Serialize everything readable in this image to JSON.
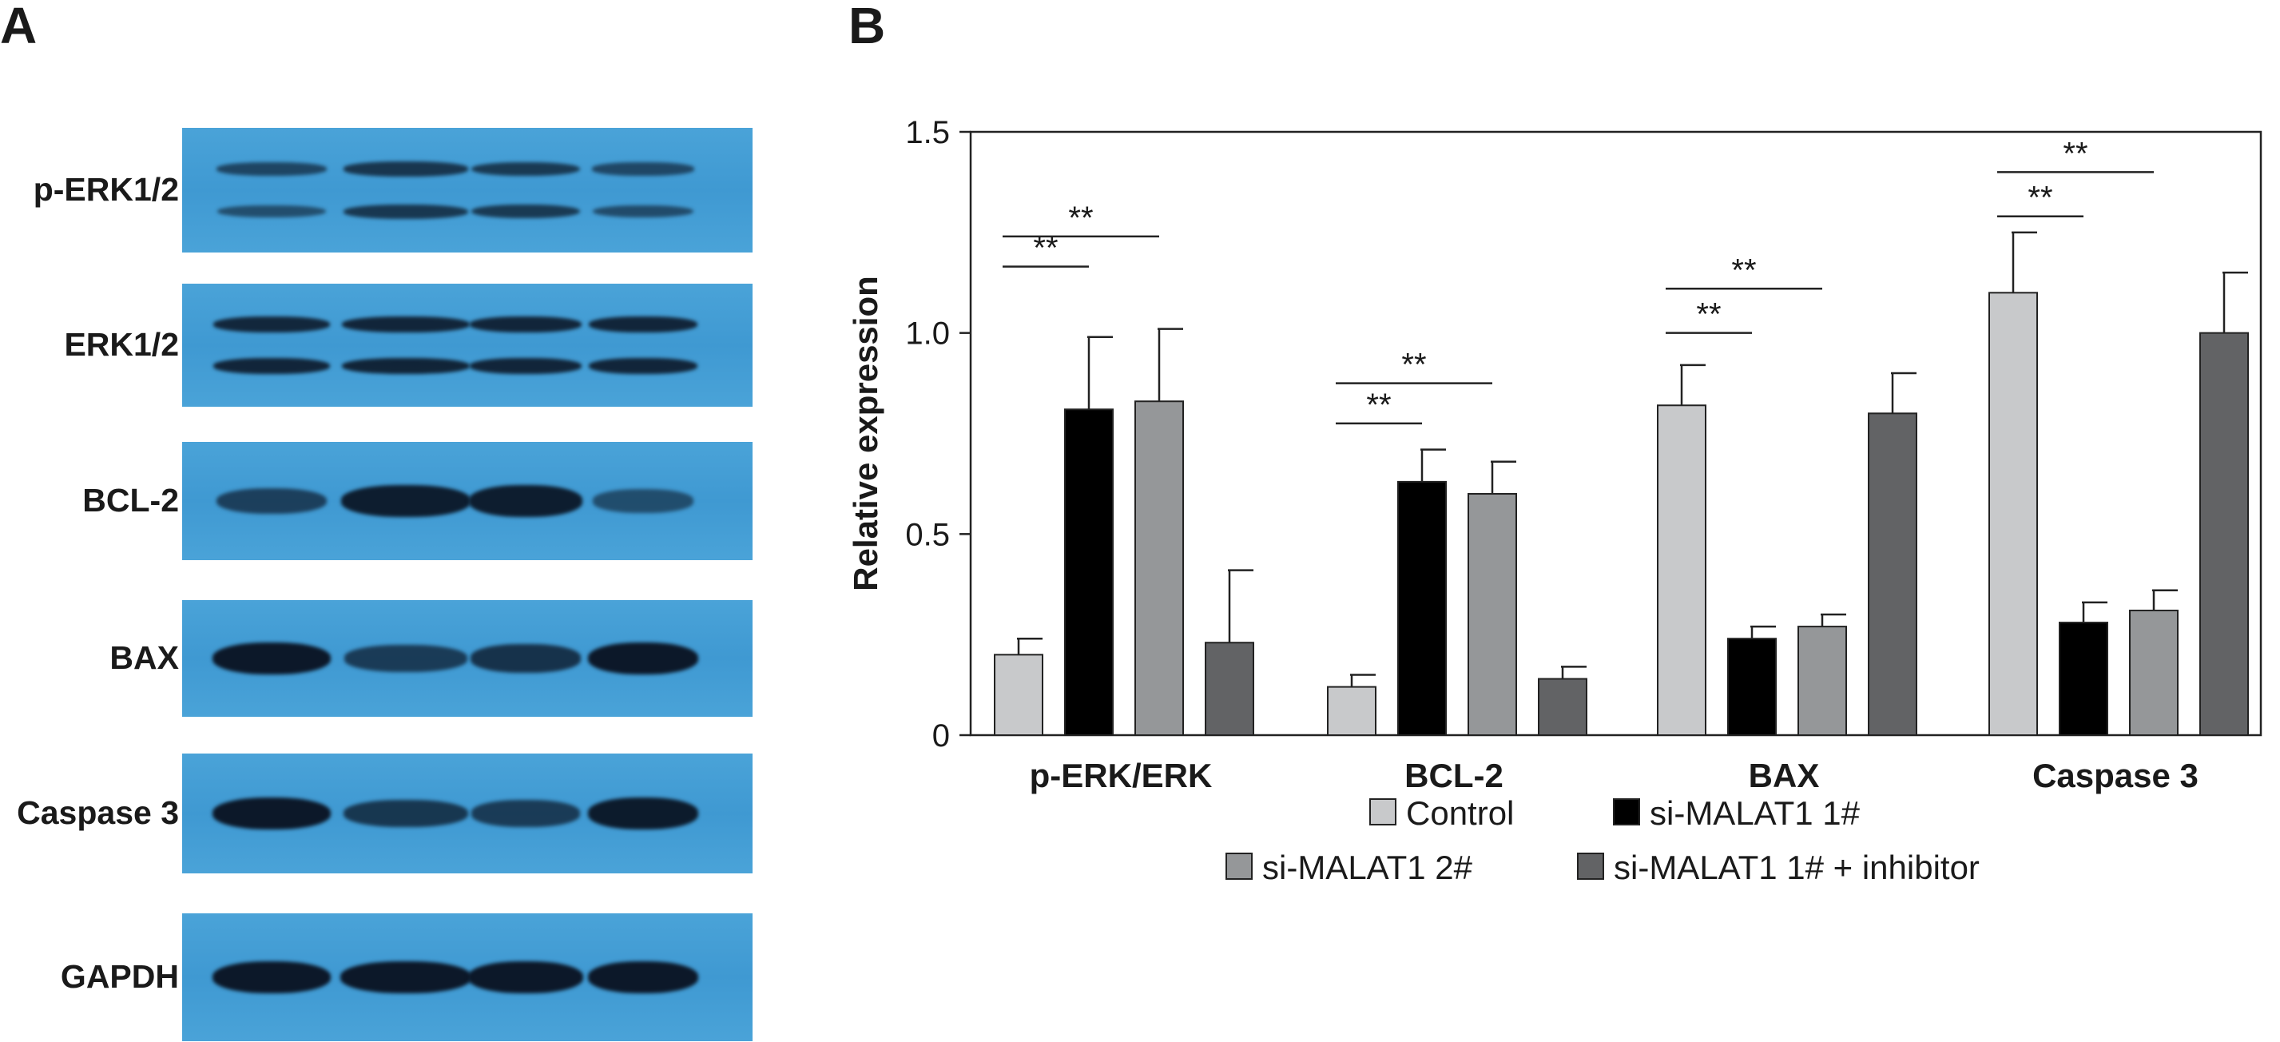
{
  "panel_a": {
    "letter": "A",
    "blots": [
      {
        "label": "p-ERK1/2",
        "bands": [
          [
            0.45,
            0.62,
            0.58,
            0.42
          ],
          [
            0.35,
            0.6,
            0.58,
            0.38
          ]
        ]
      },
      {
        "label": "ERK1/2",
        "bands": [
          [
            0.78,
            0.8,
            0.8,
            0.8
          ],
          [
            0.8,
            0.82,
            0.8,
            0.8
          ]
        ]
      },
      {
        "label": "BCL-2",
        "bands": [
          [
            0.5,
            0.9,
            0.9,
            0.35
          ]
        ]
      },
      {
        "label": "BAX",
        "bands": [
          [
            0.95,
            0.55,
            0.65,
            0.95
          ]
        ]
      },
      {
        "label": "Caspase 3",
        "bands": [
          [
            0.95,
            0.6,
            0.55,
            0.92
          ]
        ]
      },
      {
        "label": "GAPDH",
        "bands": [
          [
            0.95,
            0.95,
            0.95,
            0.95
          ]
        ]
      }
    ]
  },
  "panel_b": {
    "letter": "B"
  },
  "chart_data": {
    "type": "bar",
    "title": "",
    "xlabel": "",
    "ylabel": "Relative expression",
    "ylim": [
      0,
      1.5
    ],
    "yticks": [
      0,
      0.5,
      1.0,
      1.5
    ],
    "ytick_labels": [
      "0",
      "0.5",
      "1.0",
      "1.5"
    ],
    "categories": [
      "p-ERK/ERK",
      "BCL-2",
      "BAX",
      "Caspase 3"
    ],
    "series": [
      {
        "name": "Control",
        "color": "#c8c9cb",
        "values": [
          0.2,
          0.12,
          0.82,
          1.1
        ],
        "errors": [
          0.04,
          0.03,
          0.1,
          0.15
        ]
      },
      {
        "name": "si-MALAT1 1#",
        "color": "#000000",
        "values": [
          0.81,
          0.63,
          0.24,
          0.28
        ],
        "errors": [
          0.18,
          0.08,
          0.03,
          0.05
        ]
      },
      {
        "name": "si-MALAT1 2#",
        "color": "#959799",
        "values": [
          0.83,
          0.6,
          0.27,
          0.31
        ],
        "errors": [
          0.18,
          0.08,
          0.03,
          0.05
        ]
      },
      {
        "name": "si-MALAT1 1# + inhibitor",
        "color": "#626365",
        "values": [
          0.23,
          0.14,
          0.8,
          1.0
        ],
        "errors": [
          0.18,
          0.03,
          0.1,
          0.15
        ]
      }
    ],
    "significance": [
      {
        "category": 0,
        "from": 0,
        "to": 1,
        "y": 1.165,
        "label": "**"
      },
      {
        "category": 0,
        "from": 0,
        "to": 2,
        "y": 1.24,
        "label": "**"
      },
      {
        "category": 1,
        "from": 0,
        "to": 1,
        "y": 0.775,
        "label": "**"
      },
      {
        "category": 1,
        "from": 0,
        "to": 2,
        "y": 0.875,
        "label": "**"
      },
      {
        "category": 2,
        "from": 0,
        "to": 1,
        "y": 1.0,
        "label": "**"
      },
      {
        "category": 2,
        "from": 0,
        "to": 2,
        "y": 1.11,
        "label": "**"
      },
      {
        "category": 3,
        "from": 0,
        "to": 1,
        "y": 1.29,
        "label": "**"
      },
      {
        "category": 3,
        "from": 0,
        "to": 2,
        "y": 1.4,
        "label": "**"
      }
    ],
    "grid": false,
    "legend_position": "bottom"
  }
}
